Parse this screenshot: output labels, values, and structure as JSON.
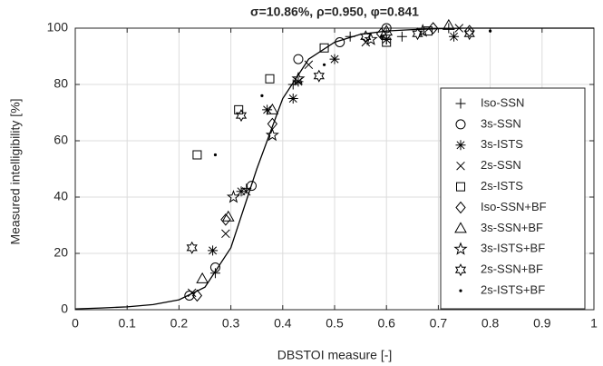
{
  "chart_data": {
    "type": "scatter",
    "title": "σ=10.86%, ρ=0.950, φ=0.841",
    "x_label": "DBSTOI measure [-]",
    "y_label": "Measured intelligibility [%]",
    "xlim": [
      0,
      1
    ],
    "ylim": [
      0,
      100
    ],
    "xticks": [
      0,
      0.1,
      0.2,
      0.3,
      0.4,
      0.5,
      0.6,
      0.7,
      0.8,
      0.9,
      1
    ],
    "yticks": [
      0,
      20,
      40,
      60,
      80,
      100
    ],
    "grid": true,
    "legend": "right",
    "fit": {
      "color": "#000000",
      "x": [
        0,
        0.05,
        0.1,
        0.15,
        0.2,
        0.25,
        0.3,
        0.35,
        0.4,
        0.45,
        0.5,
        0.55,
        0.6,
        0.65,
        0.7,
        0.75,
        0.8,
        0.9,
        1
      ],
      "y": [
        0.3,
        0.6,
        1,
        1.8,
        3.5,
        8,
        22,
        50,
        75,
        89,
        95,
        97.8,
        99,
        99.5,
        99.8,
        100,
        100,
        100,
        100
      ]
    },
    "series": [
      {
        "name": "Iso-SSN",
        "marker": "plus",
        "color": "#000000",
        "x": [
          0.27,
          0.33,
          0.42,
          0.53,
          0.6,
          0.63,
          0.72
        ],
        "values": [
          13,
          43,
          80,
          97,
          96,
          97,
          100
        ]
      },
      {
        "name": "3s-SSN",
        "marker": "circle",
        "color": "#000000",
        "x": [
          0.22,
          0.27,
          0.34,
          0.43,
          0.51,
          0.6
        ],
        "values": [
          5,
          15,
          44,
          89,
          95,
          100
        ]
      },
      {
        "name": "3s-ISTS",
        "marker": "asterisk",
        "color": "#000000",
        "x": [
          0.265,
          0.32,
          0.37,
          0.42,
          0.43,
          0.5,
          0.6,
          0.73
        ],
        "values": [
          21,
          42,
          71,
          75,
          81,
          89,
          96,
          97
        ]
      },
      {
        "name": "2s-SSN",
        "marker": "cross",
        "color": "#000000",
        "x": [
          0.225,
          0.29,
          0.33,
          0.45,
          0.56,
          0.74
        ],
        "values": [
          6,
          27,
          42,
          87,
          95,
          100
        ]
      },
      {
        "name": "2s-ISTS",
        "marker": "square",
        "color": "#000000",
        "x": [
          0.235,
          0.315,
          0.375,
          0.48,
          0.6,
          0.68
        ],
        "values": [
          55,
          71,
          82,
          93,
          95,
          99
        ]
      },
      {
        "name": "Iso-SSN+BF",
        "marker": "diamond",
        "color": "#000000",
        "x": [
          0.235,
          0.29,
          0.38,
          0.59,
          0.69,
          0.76
        ],
        "values": [
          5,
          32,
          66,
          98,
          100,
          99
        ]
      },
      {
        "name": "3s-SSN+BF",
        "marker": "triangle",
        "color": "#000000",
        "x": [
          0.245,
          0.295,
          0.38,
          0.6,
          0.72
        ],
        "values": [
          11,
          33,
          71,
          99,
          101
        ]
      },
      {
        "name": "3s-ISTS+BF",
        "marker": "star5",
        "color": "#000000",
        "x": [
          0.305,
          0.38,
          0.43,
          0.57,
          0.67
        ],
        "values": [
          40,
          62,
          82,
          96,
          99
        ]
      },
      {
        "name": "2s-SSN+BF",
        "marker": "star6",
        "color": "#000000",
        "x": [
          0.225,
          0.32,
          0.47,
          0.56,
          0.66,
          0.76
        ],
        "values": [
          22,
          69,
          83,
          97,
          98,
          98
        ]
      },
      {
        "name": "2s-ISTS+BF",
        "marker": "dot",
        "color": "#000000",
        "x": [
          0.27,
          0.36,
          0.48,
          0.59,
          0.8
        ],
        "values": [
          55,
          76,
          87,
          97,
          99
        ]
      }
    ]
  }
}
